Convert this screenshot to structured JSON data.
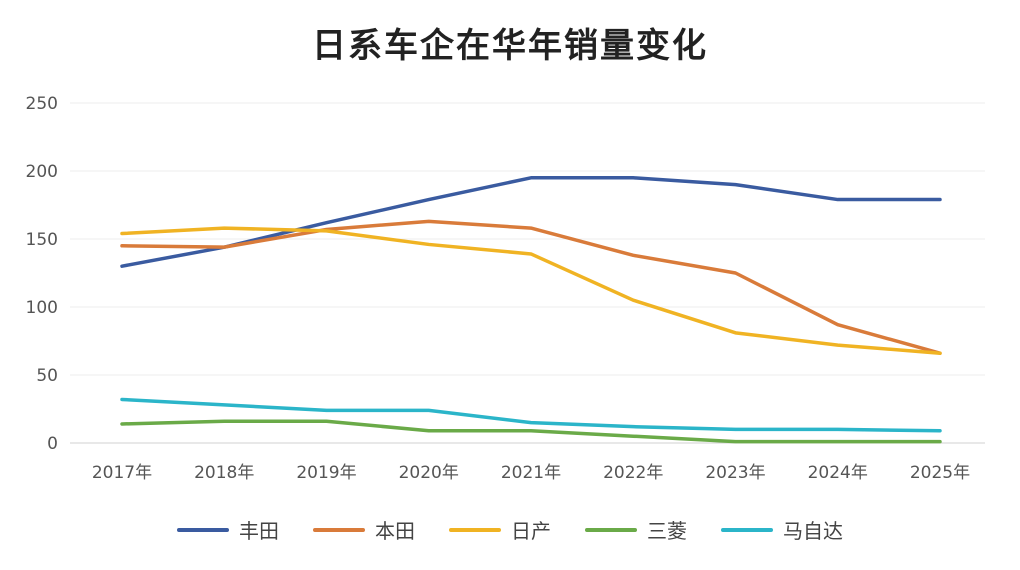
{
  "chart_data": {
    "type": "line",
    "title": "日系车企在华年销量变化",
    "xlabel": "",
    "ylabel": "",
    "categories": [
      "2017年",
      "2018年",
      "2019年",
      "2020年",
      "2021年",
      "2022年",
      "2023年",
      "2024年",
      "2025年"
    ],
    "ylim": [
      0,
      250
    ],
    "yticks": [
      "0",
      "50",
      "100",
      "150",
      "200",
      "250"
    ],
    "grid": true,
    "legend_position": "bottom",
    "series": [
      {
        "name": "丰田",
        "color": "#3a5ba0",
        "values": [
          130,
          144,
          162,
          179,
          195,
          195,
          190,
          179,
          179
        ]
      },
      {
        "name": "本田",
        "color": "#d97b3a",
        "values": [
          145,
          144,
          157,
          163,
          158,
          138,
          125,
          87,
          66
        ]
      },
      {
        "name": "日产",
        "color": "#f0b323",
        "values": [
          154,
          158,
          156,
          146,
          139,
          105,
          81,
          72,
          66
        ]
      },
      {
        "name": "三菱",
        "color": "#6aaa48",
        "values": [
          14,
          16,
          16,
          9,
          9,
          5,
          1,
          1,
          1
        ]
      },
      {
        "name": "马自达",
        "color": "#2bb5c9",
        "values": [
          32,
          28,
          24,
          24,
          15,
          12,
          10,
          10,
          9
        ]
      }
    ]
  }
}
